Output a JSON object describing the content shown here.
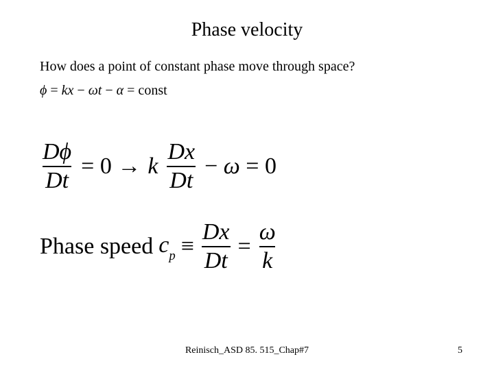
{
  "title": "Phase velocity",
  "question": "How does a point of constant phase move through space?",
  "phi_def": {
    "lhs": "ϕ",
    "eq": " = ",
    "rhs": "kx − ωt − α = const"
  },
  "eq_main": {
    "frac1_num": "Dϕ",
    "frac1_den": "Dt",
    "eq1": "= 0 →",
    "k": "k",
    "frac2_num": "Dx",
    "frac2_den": "Dt",
    "tail": "− ω = 0"
  },
  "phase_speed": {
    "label": "Phase speed ",
    "cp_c": "c",
    "cp_p": "p",
    "equiv": "≡",
    "frac1_num": "Dx",
    "frac1_den": "Dt",
    "eq": "=",
    "frac2_num": "ω",
    "frac2_den": "k"
  },
  "footer": {
    "center": "Reinisch_ASD 85. 515_Chap#7",
    "page": "5"
  },
  "style": {
    "bg": "#ffffff",
    "text": "#000000",
    "title_fontsize": 28,
    "body_fontsize": 20,
    "eq_fontsize": 34,
    "footer_fontsize": 14,
    "font_family": "Times New Roman"
  }
}
